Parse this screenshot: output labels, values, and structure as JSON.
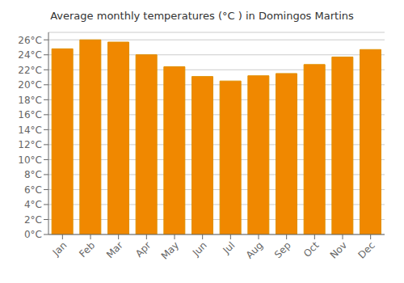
{
  "chart_data": {
    "type": "bar",
    "title": "Average monthly temperatures (°C ) in Domingos Martins",
    "categories": [
      "Jan",
      "Feb",
      "Mar",
      "Apr",
      "May",
      "Jun",
      "Jul",
      "Aug",
      "Sep",
      "Oct",
      "Nov",
      "Dec"
    ],
    "values": [
      24.8,
      26.0,
      25.7,
      24.0,
      22.4,
      21.1,
      20.5,
      21.2,
      21.5,
      22.7,
      23.7,
      24.7
    ],
    "color": "#F08800",
    "ylim": [
      0,
      27
    ],
    "yticks": [
      {
        "value": 0,
        "label": "0°C"
      },
      {
        "value": 2,
        "label": "2°C"
      },
      {
        "value": 4,
        "label": "4°C"
      },
      {
        "value": 6,
        "label": "6°C"
      },
      {
        "value": 8,
        "label": "8°C"
      },
      {
        "value": 10,
        "label": "10°C"
      },
      {
        "value": 12,
        "label": "12°C"
      },
      {
        "value": 14,
        "label": "14°C"
      },
      {
        "value": 16,
        "label": "16°C"
      },
      {
        "value": 18,
        "label": "18°C"
      },
      {
        "value": 20,
        "label": "20°C"
      },
      {
        "value": 22,
        "label": "22°C"
      },
      {
        "value": 24,
        "label": "24°C"
      },
      {
        "value": 26,
        "label": "26°C"
      }
    ],
    "grid": true
  }
}
